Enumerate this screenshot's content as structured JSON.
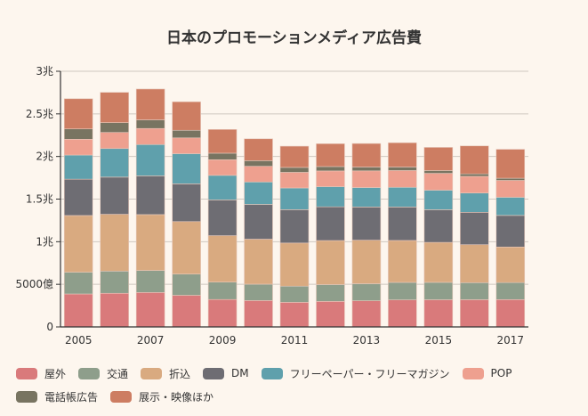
{
  "chart_data": {
    "type": "bar",
    "stacked": true,
    "title": "日本のプロモーションメディア広告費",
    "xlabel": "",
    "ylabel": "",
    "unit": "億円",
    "ylim": [
      0,
      30000
    ],
    "yticks": [
      {
        "value": 0,
        "label": "0"
      },
      {
        "value": 5000,
        "label": "5000億"
      },
      {
        "value": 10000,
        "label": "1兆"
      },
      {
        "value": 15000,
        "label": "1.5兆"
      },
      {
        "value": 20000,
        "label": "2兆"
      },
      {
        "value": 25000,
        "label": "2.5兆"
      },
      {
        "value": 30000,
        "label": "3兆"
      }
    ],
    "grid": true,
    "legend_position": "bottom",
    "categories": [
      "2005",
      "2006",
      "2007",
      "2008",
      "2009",
      "2010",
      "2011",
      "2012",
      "2013",
      "2014",
      "2015",
      "2016",
      "2017"
    ],
    "xtick_labels": [
      "2005",
      "2007",
      "2009",
      "2011",
      "2013",
      "2015",
      "2017"
    ],
    "series": [
      {
        "name": "屋外",
        "color": "#d97a7b",
        "values": [
          3866,
          3946,
          4041,
          3709,
          3218,
          3095,
          2885,
          2995,
          3071,
          3171,
          3188,
          3194,
          3208
        ]
      },
      {
        "name": "交通",
        "color": "#8e9e8b",
        "values": [
          2561,
          2607,
          2591,
          2495,
          2045,
          1922,
          1900,
          1975,
          2004,
          2054,
          2044,
          2003,
          2002
        ]
      },
      {
        "name": "折込",
        "color": "#d9aa80",
        "values": [
          6646,
          6662,
          6549,
          6156,
          5444,
          5279,
          5061,
          5165,
          5103,
          4920,
          4687,
          4450,
          4170
        ]
      },
      {
        "name": "DM",
        "color": "#6e6d73",
        "values": [
          4263,
          4362,
          4537,
          4427,
          4198,
          4075,
          3910,
          3960,
          3893,
          3923,
          3829,
          3804,
          3701
        ]
      },
      {
        "name": "フリーペーパー・フリーマガジン",
        "color": "#5fa0ac",
        "values": [
          2835,
          3357,
          3684,
          3545,
          2881,
          2640,
          2550,
          2367,
          2289,
          2316,
          2303,
          2267,
          2136
        ]
      },
      {
        "name": "POP",
        "color": "#eea08f",
        "values": [
          1851,
          1886,
          1886,
          1852,
          1837,
          1840,
          1832,
          1842,
          1953,
          1965,
          1970,
          1951,
          1975
        ]
      },
      {
        "name": "電話帳広告",
        "color": "#787461",
        "values": [
          1214,
          1157,
          1014,
          892,
          764,
          662,
          580,
          514,
          453,
          417,
          334,
          291,
          256
        ]
      },
      {
        "name": "展示・映像ほか",
        "color": "#cd7d62",
        "values": [
          3542,
          3549,
          3613,
          3342,
          2785,
          2565,
          2492,
          2680,
          2757,
          2844,
          2715,
          3282,
          3395
        ]
      }
    ]
  }
}
